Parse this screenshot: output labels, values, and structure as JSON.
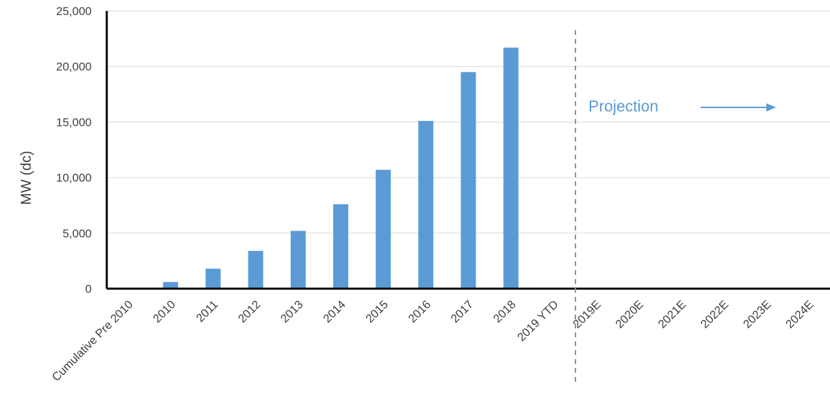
{
  "chart_data": {
    "type": "bar",
    "title": "",
    "xlabel": "",
    "ylabel": "MW (dc)",
    "ylim": [
      0,
      25000
    ],
    "yticks": [
      0,
      5000,
      10000,
      15000,
      20000,
      25000
    ],
    "ytick_labels": [
      "0",
      "5,000",
      "10,000",
      "15,000",
      "20,000",
      "25,000"
    ],
    "grid": "horizontal",
    "categories": [
      "Cumulative Pre 2010",
      "2010",
      "2011",
      "2012",
      "2013",
      "2014",
      "2015",
      "2016",
      "2017",
      "2018",
      "2019 YTD",
      "2019E",
      "2020E",
      "2021E",
      "2022E",
      "2023E",
      "2024E"
    ],
    "values": [
      0,
      600,
      1800,
      3400,
      5200,
      7600,
      10700,
      15100,
      19500,
      21700,
      null,
      null,
      null,
      null,
      null,
      null,
      null
    ],
    "bar_color": "#5b9bd5",
    "annotation": {
      "text": "Projection",
      "color": "#5b9bd5",
      "divider_after_category": "2019 YTD",
      "arrow": "right"
    }
  }
}
